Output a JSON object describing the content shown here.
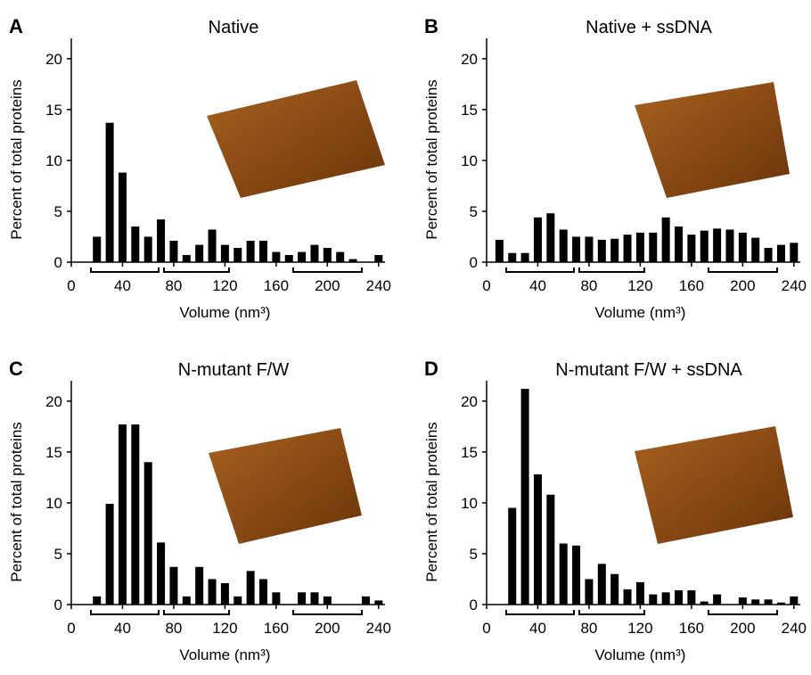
{
  "chart_data": [
    {
      "type": "bar",
      "panel_label": "A",
      "title": "Native",
      "x_label": "Volume (nm³)",
      "y_label": "Percent of total proteins",
      "color": "#000000",
      "x": [
        20,
        30,
        40,
        50,
        60,
        70,
        80,
        90,
        100,
        110,
        120,
        130,
        140,
        150,
        160,
        170,
        180,
        190,
        200,
        210,
        220,
        230,
        240
      ],
      "values": [
        2.5,
        13.7,
        8.8,
        3.5,
        2.5,
        4.2,
        2.1,
        0.7,
        1.7,
        3.2,
        1.7,
        1.4,
        2.1,
        2.1,
        1.0,
        0.7,
        1.0,
        1.7,
        1.4,
        1.0,
        0.3,
        0,
        0.7
      ],
      "xlim": [
        0,
        245
      ],
      "ylim": [
        0,
        22
      ],
      "xticks": [
        0,
        40,
        80,
        120,
        160,
        200,
        240
      ],
      "yticks": [
        0,
        5,
        10,
        15,
        20
      ]
    },
    {
      "type": "bar",
      "panel_label": "B",
      "title": "Native + ssDNA",
      "x_label": "Volume (nm³)",
      "y_label": "Percent of total proteins",
      "color": "#000000",
      "x": [
        10,
        20,
        30,
        40,
        50,
        60,
        70,
        80,
        90,
        100,
        110,
        120,
        130,
        140,
        150,
        160,
        170,
        180,
        190,
        200,
        210,
        220,
        230,
        240
      ],
      "values": [
        2.2,
        0.9,
        0.9,
        4.4,
        4.8,
        3.2,
        2.5,
        2.5,
        2.2,
        2.3,
        2.7,
        2.9,
        2.9,
        4.4,
        3.5,
        2.7,
        3.1,
        3.3,
        3.2,
        2.9,
        2.4,
        1.4,
        1.7,
        1.9
      ],
      "xlim": [
        0,
        245
      ],
      "ylim": [
        0,
        22
      ],
      "xticks": [
        0,
        40,
        80,
        120,
        160,
        200,
        240
      ],
      "yticks": [
        0,
        5,
        10,
        15,
        20
      ]
    },
    {
      "type": "bar",
      "panel_label": "C",
      "title": "N-mutant F/W",
      "x_label": "Volume (nm³)",
      "y_label": "Percent of total proteins",
      "color": "#000000",
      "x": [
        20,
        30,
        40,
        50,
        60,
        70,
        80,
        90,
        100,
        110,
        120,
        130,
        140,
        150,
        160,
        170,
        180,
        190,
        200,
        210,
        220,
        230,
        240
      ],
      "values": [
        0.8,
        9.9,
        17.7,
        17.7,
        14.0,
        6.1,
        3.7,
        0.8,
        3.7,
        2.5,
        2.1,
        0.8,
        3.3,
        2.5,
        1.2,
        0,
        1.2,
        1.2,
        0.8,
        0,
        0,
        0.8,
        0.4
      ],
      "xlim": [
        0,
        245
      ],
      "ylim": [
        0,
        22
      ],
      "xticks": [
        0,
        40,
        80,
        120,
        160,
        200,
        240
      ],
      "yticks": [
        0,
        5,
        10,
        15,
        20
      ]
    },
    {
      "type": "bar",
      "panel_label": "D",
      "title": "N-mutant F/W + ssDNA",
      "x_label": "Volume (nm³)",
      "y_label": "Percent of total proteins",
      "color": "#000000",
      "x": [
        20,
        30,
        40,
        50,
        60,
        70,
        80,
        90,
        100,
        110,
        120,
        130,
        140,
        150,
        160,
        170,
        180,
        190,
        200,
        210,
        220,
        230,
        240
      ],
      "values": [
        9.5,
        21.2,
        12.8,
        10.8,
        6.0,
        5.8,
        2.5,
        4.0,
        3.0,
        1.5,
        2.2,
        1.0,
        1.2,
        1.4,
        1.4,
        0.3,
        1.0,
        0,
        0.7,
        0.5,
        0.5,
        0.2,
        0.8
      ],
      "xlim": [
        0,
        245
      ],
      "ylim": [
        0,
        22
      ],
      "xticks": [
        0,
        40,
        80,
        120,
        160,
        200,
        240
      ],
      "yticks": [
        0,
        5,
        10,
        15,
        20
      ]
    }
  ]
}
